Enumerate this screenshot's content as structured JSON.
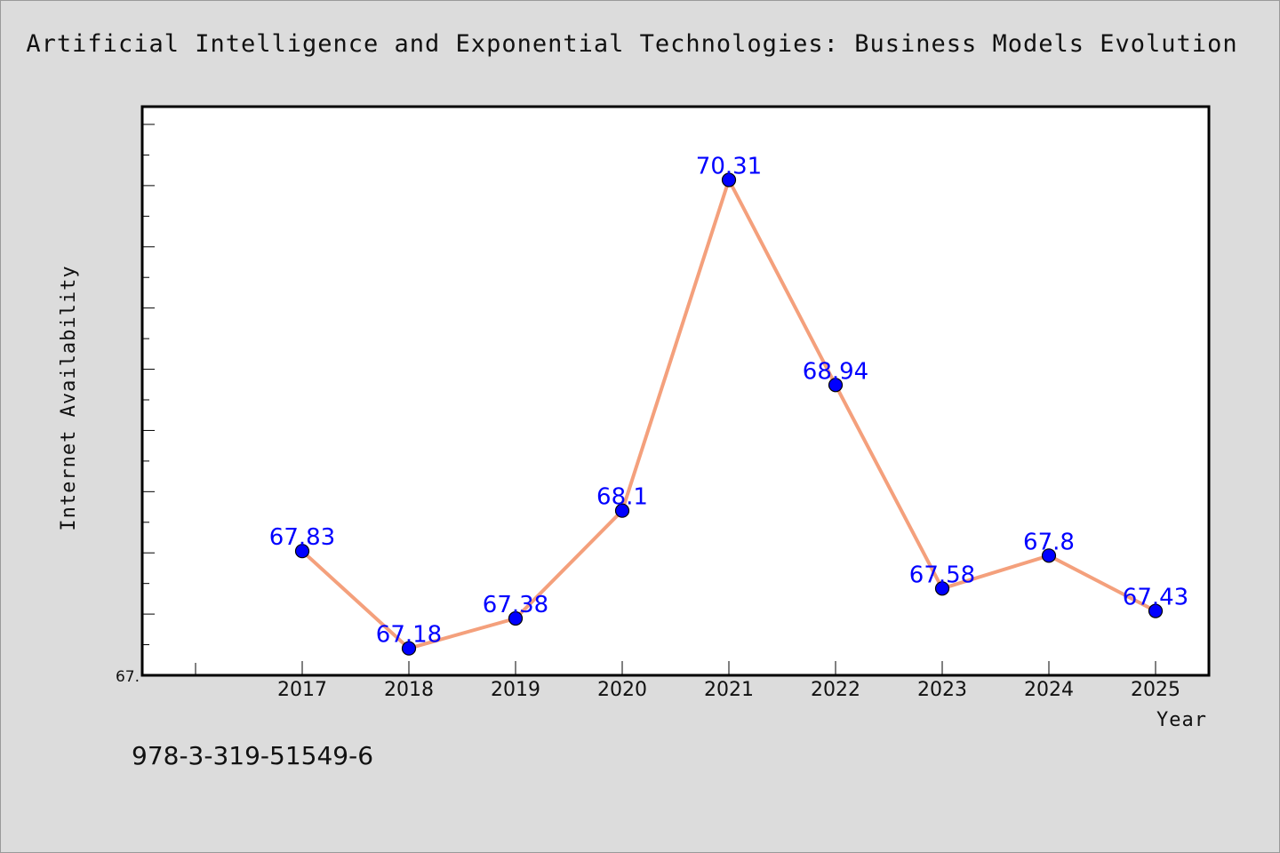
{
  "chart_data": {
    "type": "line",
    "title": "Artificial Intelligence and Exponential Technologies: Business Models Evolution",
    "xlabel": "Year",
    "ylabel": "Internet Availability",
    "categories": [
      "2017",
      "2018",
      "2019",
      "2020",
      "2021",
      "2022",
      "2023",
      "2024",
      "2025"
    ],
    "values": [
      67.83,
      67.18,
      67.38,
      68.1,
      70.31,
      68.94,
      67.58,
      67.8,
      67.43
    ],
    "data_labels": [
      "67.83",
      "67.18",
      "67.38",
      "68.1",
      "70.31",
      "68.94",
      "67.58",
      "67.8",
      "67.43"
    ],
    "y_min_label": "67.",
    "ylim": [
      67.0,
      70.8
    ],
    "grid": false,
    "legend": "none",
    "line_color": "#f4a07c",
    "marker_color": "#0000ff",
    "label_color": "#0000ff"
  },
  "footer": {
    "isbn": "978-3-319-51549-6"
  }
}
